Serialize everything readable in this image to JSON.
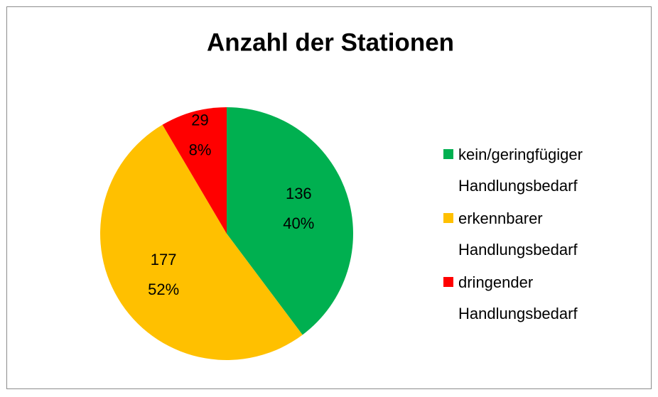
{
  "chart_data": {
    "type": "pie",
    "title": "Anzahl der Stationen",
    "categories": [
      "kein/geringfügiger Handlungsbedarf",
      "erkennbarer Handlungsbedarf",
      "dringender Handlungsbedarf"
    ],
    "values": [
      136,
      177,
      29
    ],
    "percent_labels": [
      "40%",
      "52%",
      "8%"
    ],
    "colors": [
      "#00b050",
      "#ffc000",
      "#ff0000"
    ],
    "legend": "right"
  }
}
